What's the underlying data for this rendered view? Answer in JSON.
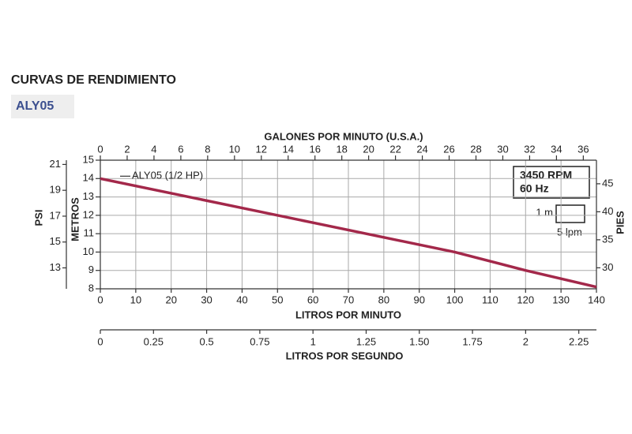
{
  "header": {
    "title": "CURVAS DE RENDIMIENTO",
    "model": "ALY05"
  },
  "chart_data": {
    "type": "line",
    "x_label": "LITROS POR MINUTO",
    "y_label": "METROS",
    "xlim": [
      0,
      140
    ],
    "xticks": [
      0,
      10,
      20,
      30,
      40,
      50,
      60,
      70,
      80,
      90,
      100,
      110,
      120,
      130,
      140
    ],
    "ylim": [
      8,
      15
    ],
    "yticks": [
      8,
      9,
      10,
      11,
      12,
      13,
      14,
      15
    ],
    "grid": true,
    "x": [
      0,
      20,
      40,
      60,
      80,
      100,
      120,
      140
    ],
    "series": [
      {
        "name": "ALY05 (1/2 HP)",
        "color": "#a3284a",
        "values": [
          14,
          13.2,
          12.4,
          11.6,
          10.8,
          10.0,
          9.0,
          8.1
        ]
      }
    ],
    "top_axis": {
      "label": "GALONES POR MINUTO (U.S.A.)",
      "xlim": [
        0,
        36.98
      ],
      "xticks": [
        0,
        2,
        4,
        6,
        8,
        10,
        12,
        14,
        16,
        18,
        20,
        22,
        24,
        26,
        28,
        30,
        32,
        34,
        36
      ]
    },
    "bottom_axis2": {
      "label": "LITROS POR SEGUNDO",
      "xlim": [
        0,
        2.333
      ],
      "xticks": [
        0,
        0.25,
        0.5,
        0.75,
        1,
        1.25,
        {
          "value": 1.5,
          "label": "1.50"
        },
        1.75,
        2,
        2.25
      ]
    },
    "left_axis2": {
      "label": "PSI",
      "ylim": [
        11.38,
        21.33
      ],
      "yticks": [
        13,
        15,
        17,
        19,
        21
      ]
    },
    "y2_label": "PIES",
    "y2lim": [
      26.25,
      49.21
    ],
    "y2ticks": [
      30,
      35,
      40,
      45
    ],
    "annotations": {
      "speed": "3450 RPM",
      "frequency": "60 Hz",
      "scale_y": "1 m",
      "scale_x": "5 lpm"
    }
  }
}
